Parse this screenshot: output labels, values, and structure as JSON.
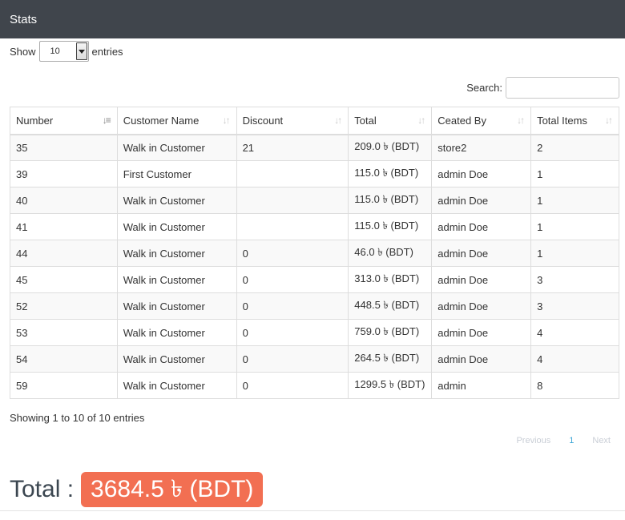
{
  "header": {
    "title": "Stats"
  },
  "length": {
    "show_label": "Show",
    "value": "10",
    "entries_label": "entries"
  },
  "search": {
    "label": "Search:",
    "placeholder": ""
  },
  "table": {
    "columns": [
      "Number",
      "Customer Name",
      "Discount",
      "Total",
      "Ceated By",
      "Total Items"
    ],
    "rows": [
      [
        "35",
        "Walk in Customer",
        "21",
        "209.0 ৳ (BDT)",
        "store2",
        "2"
      ],
      [
        "39",
        "First Customer",
        "",
        "115.0 ৳ (BDT)",
        "admin Doe",
        "1"
      ],
      [
        "40",
        "Walk in Customer",
        "",
        "115.0 ৳ (BDT)",
        "admin Doe",
        "1"
      ],
      [
        "41",
        "Walk in Customer",
        "",
        "115.0 ৳ (BDT)",
        "admin Doe",
        "1"
      ],
      [
        "44",
        "Walk in Customer",
        "0",
        "46.0 ৳ (BDT)",
        "admin Doe",
        "1"
      ],
      [
        "45",
        "Walk in Customer",
        "0",
        "313.0 ৳ (BDT)",
        "admin Doe",
        "3"
      ],
      [
        "52",
        "Walk in Customer",
        "0",
        "448.5 ৳ (BDT)",
        "admin Doe",
        "3"
      ],
      [
        "53",
        "Walk in Customer",
        "0",
        "759.0 ৳ (BDT)",
        "admin Doe",
        "4"
      ],
      [
        "54",
        "Walk in Customer",
        "0",
        "264.5 ৳ (BDT)",
        "admin Doe",
        "4"
      ],
      [
        "59",
        "Walk in Customer",
        "0",
        "1299.5 ৳ (BDT)",
        "admin",
        "8"
      ]
    ]
  },
  "info": "Showing 1 to 10 of 10 entries",
  "pagination": {
    "previous": "Previous",
    "current": "1",
    "next": "Next"
  },
  "total": {
    "label": "Total :",
    "value": "3684.5 ৳ (BDT)"
  },
  "colors": {
    "header_bg": "#40454c",
    "badge_bg": "#f26f52",
    "page_link": "#3aa5d6"
  }
}
